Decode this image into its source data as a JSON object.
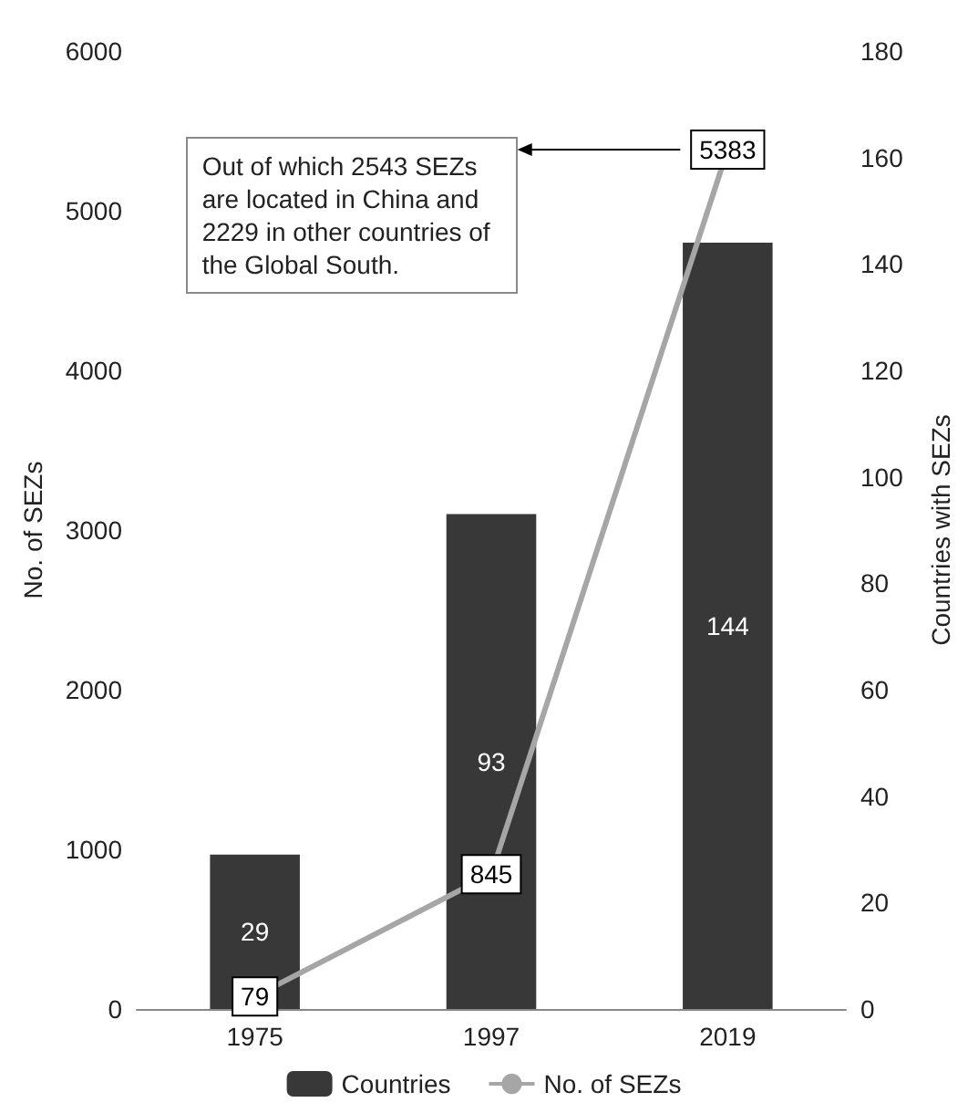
{
  "chart_data": {
    "type": "bar",
    "categories": [
      "1975",
      "1997",
      "2019"
    ],
    "series": [
      {
        "name": "Countries",
        "axis": "y2",
        "color": "#383838",
        "values": [
          29,
          93,
          144
        ]
      },
      {
        "name": "No. of SEZs",
        "type": "line",
        "axis": "y",
        "color": "#a6a6a6",
        "values": [
          79,
          845,
          5383
        ],
        "marker": "circle"
      }
    ],
    "ylabel": "No. of SEZs",
    "y2label": "Countries with SEZs",
    "ylim": [
      0,
      6000
    ],
    "yticks": [
      0,
      1000,
      2000,
      3000,
      4000,
      5000,
      6000
    ],
    "y2lim": [
      0,
      180
    ],
    "y2ticks": [
      0,
      20,
      40,
      60,
      80,
      100,
      120,
      140,
      160,
      180
    ],
    "data_labels": true,
    "grid": false,
    "legend": "bottom",
    "annotations": [
      "Out of which 2543 SEZs are located in China and 2229 in other countries of the Global South."
    ]
  }
}
